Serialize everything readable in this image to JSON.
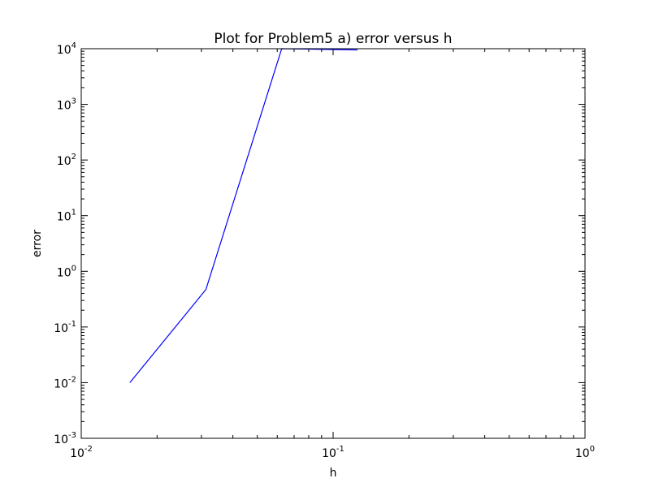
{
  "chart_data": {
    "type": "line",
    "title": "Plot for Problem5 a) error versus h",
    "xlabel": "h",
    "ylabel": "error",
    "xscale": "log",
    "yscale": "log",
    "xlim": [
      0.01,
      1
    ],
    "ylim": [
      0.001,
      10000
    ],
    "grid": false,
    "legend": "none",
    "x_ticks": [
      {
        "base": "10",
        "exp": "-2",
        "value": 0.01
      },
      {
        "base": "10",
        "exp": "-1",
        "value": 0.1
      },
      {
        "base": "10",
        "exp": "0",
        "value": 1
      }
    ],
    "y_ticks": [
      {
        "base": "10",
        "exp": "-3",
        "value": 0.001
      },
      {
        "base": "10",
        "exp": "-2",
        "value": 0.01
      },
      {
        "base": "10",
        "exp": "-1",
        "value": 0.1
      },
      {
        "base": "10",
        "exp": "0",
        "value": 1
      },
      {
        "base": "10",
        "exp": "1",
        "value": 10
      },
      {
        "base": "10",
        "exp": "2",
        "value": 100
      },
      {
        "base": "10",
        "exp": "3",
        "value": 1000
      },
      {
        "base": "10",
        "exp": "4",
        "value": 10000
      }
    ],
    "series": [
      {
        "color": "#0000ff",
        "x": [
          0.0156,
          0.03125,
          0.0625,
          0.125
        ],
        "y": [
          0.01,
          0.47,
          10000,
          9500
        ]
      }
    ]
  }
}
